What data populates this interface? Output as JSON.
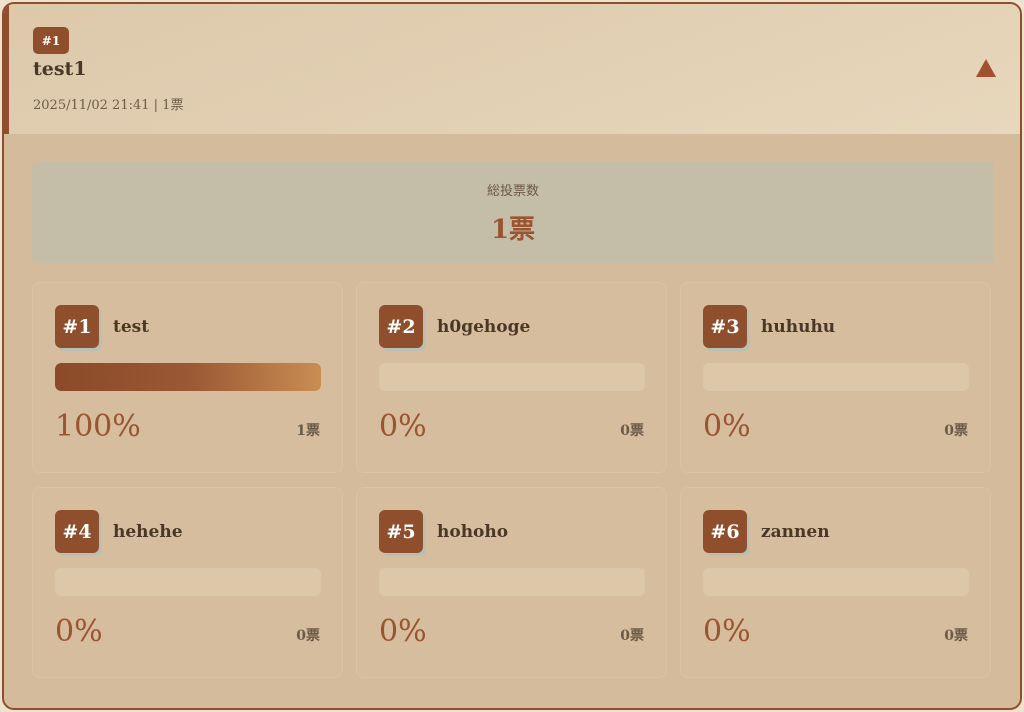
{
  "poll": {
    "badge": "#1",
    "title": "test1",
    "meta": "2025/11/02 21:41 | 1票",
    "toggle_icon": "triangle-up"
  },
  "total": {
    "label": "総投票数",
    "value": "1票"
  },
  "options": [
    {
      "rank": "#1",
      "name": "test",
      "percent": 100,
      "percent_label": "100%",
      "votes": "1票"
    },
    {
      "rank": "#2",
      "name": "h0gehoge",
      "percent": 0,
      "percent_label": "0%",
      "votes": "0票"
    },
    {
      "rank": "#3",
      "name": "huhuhu",
      "percent": 0,
      "percent_label": "0%",
      "votes": "0票"
    },
    {
      "rank": "#4",
      "name": "hehehe",
      "percent": 0,
      "percent_label": "0%",
      "votes": "0票"
    },
    {
      "rank": "#5",
      "name": "hohoho",
      "percent": 0,
      "percent_label": "0%",
      "votes": "0票"
    },
    {
      "rank": "#6",
      "name": "zannen",
      "percent": 0,
      "percent_label": "0%",
      "votes": "0票"
    }
  ]
}
